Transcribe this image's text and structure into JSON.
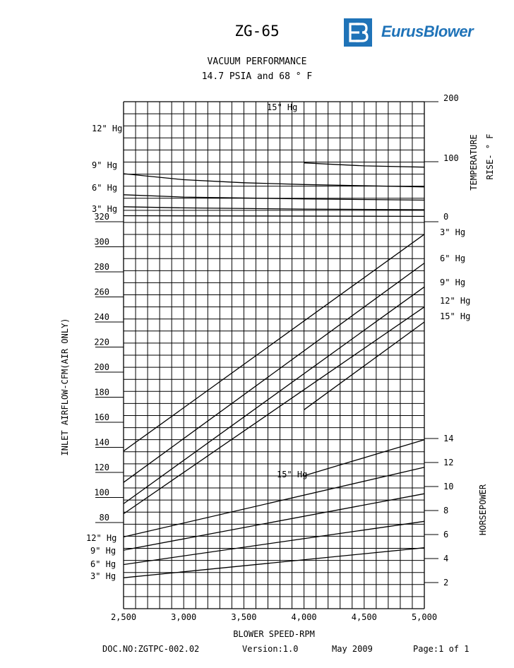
{
  "header": {
    "model": "ZG-65",
    "brand": "EurusBlower",
    "brand_color": "#1f73b8",
    "logo_icon": "eb-logo-icon"
  },
  "title_lines": [
    "VACUUM PERFORMANCE",
    "14.7 PSIA and 68 ° F"
  ],
  "footer": {
    "doc_no": "DOC.NO:ZGTPC-002.02",
    "version": "Version:1.0",
    "date": "May 2009",
    "page": "Page:1 of 1"
  },
  "chart_data": {
    "type": "line",
    "xlabel": "BLOWER SPEED-RPM",
    "xlim": [
      2500,
      5000
    ],
    "x_ticks": [
      2500,
      3000,
      3500,
      4000,
      4500,
      5000
    ],
    "x_tick_labels": [
      "2,500",
      "3,000",
      "3,500",
      "4,000",
      "4,500",
      "5,000"
    ],
    "grid": true,
    "airflow": {
      "ylabel": "INLET AIRFLOW-CFM(AIR ONLY)",
      "ticks": [
        80,
        100,
        120,
        140,
        160,
        180,
        200,
        220,
        240,
        260,
        280,
        300,
        320
      ],
      "series": [
        {
          "name": "3\" Hg",
          "x": [
            2500,
            5000
          ],
          "y": [
            137,
            310
          ]
        },
        {
          "name": "6\" Hg",
          "x": [
            2500,
            5000
          ],
          "y": [
            112,
            287
          ]
        },
        {
          "name": "9\" Hg",
          "x": [
            2500,
            5000
          ],
          "y": [
            95,
            268
          ]
        },
        {
          "name": "12\" Hg",
          "x": [
            2500,
            5000
          ],
          "y": [
            87,
            252
          ]
        },
        {
          "name": "15\" Hg",
          "x": [
            4000,
            5000
          ],
          "y": [
            170,
            240
          ]
        }
      ]
    },
    "temperature": {
      "ylabel": "TEMPERATURE RISE- ° F",
      "ticks": [
        0,
        100,
        200
      ],
      "series": [
        {
          "name": "3\" Hg",
          "x": [
            2500,
            5000
          ],
          "y": [
            10,
            9
          ]
        },
        {
          "name": "6\" Hg",
          "x": [
            2500,
            3000,
            4000,
            5000
          ],
          "y": [
            25,
            23,
            21,
            20
          ]
        },
        {
          "name": "9\" Hg",
          "x": [
            2500,
            3000,
            4000,
            5000
          ],
          "y": [
            45,
            41,
            38,
            36
          ]
        },
        {
          "name": "12\" Hg",
          "x": [
            2500,
            3000,
            3500,
            4000,
            4500,
            5000
          ],
          "y": [
            80,
            70,
            65,
            62,
            60,
            58
          ]
        },
        {
          "name": "15\" Hg",
          "x": [
            4000,
            4500,
            5000
          ],
          "y": [
            98,
            93,
            91
          ]
        }
      ]
    },
    "horsepower": {
      "ylabel": "HORSEPOWER",
      "ticks": [
        2,
        4,
        6,
        8,
        10,
        12,
        14
      ],
      "series": [
        {
          "name": "3\" Hg",
          "x": [
            2500,
            5000
          ],
          "y": [
            2.4,
            4.9
          ]
        },
        {
          "name": "6\" Hg",
          "x": [
            2500,
            5000
          ],
          "y": [
            3.5,
            7.1
          ]
        },
        {
          "name": "9\" Hg",
          "x": [
            2500,
            5000
          ],
          "y": [
            4.7,
            9.4
          ]
        },
        {
          "name": "12\" Hg",
          "x": [
            2500,
            5000
          ],
          "y": [
            5.8,
            11.6
          ]
        },
        {
          "name": "15\" Hg",
          "x": [
            4000,
            5000
          ],
          "y": [
            10.9,
            13.9
          ]
        }
      ]
    }
  }
}
